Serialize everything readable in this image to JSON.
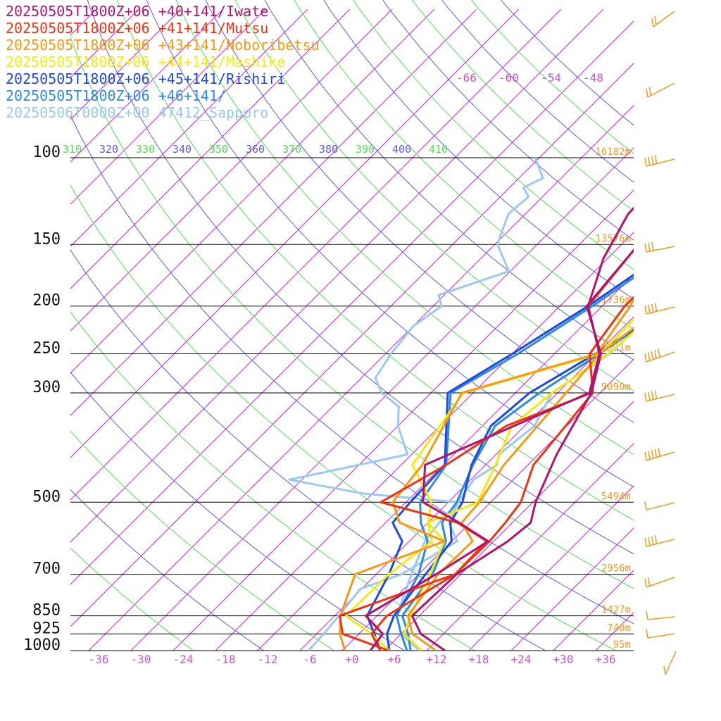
{
  "chart_data": {
    "type": "line",
    "title": "",
    "xlabel": "",
    "ylabel": "",
    "y_scale": "log-pressure",
    "x_ticks": [
      "-36",
      "-30",
      "-24",
      "-18",
      "-12",
      "-6",
      "+0",
      "+6",
      "+12",
      "+18",
      "+24",
      "+30",
      "+36"
    ],
    "pressure_ticks": [
      {
        "p": 100,
        "label": "100"
      },
      {
        "p": 150,
        "label": "150"
      },
      {
        "p": 200,
        "label": "200"
      },
      {
        "p": 250,
        "label": "250"
      },
      {
        "p": 300,
        "label": "300"
      },
      {
        "p": 500,
        "label": "500"
      },
      {
        "p": 700,
        "label": "700"
      },
      {
        "p": 850,
        "label": "850"
      },
      {
        "p": 925,
        "label": "925"
      },
      {
        "p": 1000,
        "label": "1000"
      }
    ],
    "heights": [
      {
        "p": 100,
        "label": "16182m"
      },
      {
        "p": 150,
        "label": "13576m"
      },
      {
        "p": 200,
        "label": "11736m"
      },
      {
        "p": 250,
        "label": "10321m"
      },
      {
        "p": 300,
        "label": "9090m"
      },
      {
        "p": 500,
        "label": "5494m"
      },
      {
        "p": 700,
        "label": "2956m"
      },
      {
        "p": 850,
        "label": "1427m"
      },
      {
        "p": 925,
        "label": "740m"
      },
      {
        "p": 1000,
        "label": "95m"
      }
    ],
    "theta_labels": [
      "310",
      "320",
      "330",
      "340",
      "350",
      "360",
      "370",
      "380",
      "390",
      "400",
      "410"
    ],
    "isotherm_top_labels": [
      "-66",
      "-60",
      "-54",
      "-48"
    ],
    "series": [
      {
        "name": "20250505T1800Z+06 +40+141/Iwate",
        "color": "#b5126e"
      },
      {
        "name": "20250505T1800Z+06 +41+141/Mutsu",
        "color": "#ef3412"
      },
      {
        "name": "20250505T1800Z+06 +43+141/Noboribetsu",
        "color": "#f79a0f"
      },
      {
        "name": "20250505T1800Z+06 +44+141/Mashike",
        "color": "#f4ea12"
      },
      {
        "name": "20250505T1800Z+06 +45+141/Rishiri",
        "color": "#1f48e3"
      },
      {
        "name": "20250505T1800Z+06 +46+141/",
        "color": "#2c8ae6"
      },
      {
        "name": "20250506T0000Z+00 47412_Sapporo",
        "color": "#9cc8f4"
      }
    ],
    "profiles": [
      {
        "series": 0,
        "temperature": [
          [
            1000,
            12.6
          ],
          [
            925,
            6.8
          ],
          [
            850,
            3.0
          ],
          [
            700,
            3.4
          ],
          [
            600,
            6.0
          ],
          [
            550,
            6.6
          ],
          [
            500,
            4.4
          ],
          [
            400,
            0.6
          ],
          [
            300,
            -3.2
          ],
          [
            250,
            -7.4
          ],
          [
            200,
            -16.2
          ],
          [
            150,
            -17.6
          ],
          [
            100,
            -20.6
          ],
          [
            80,
            -26.0
          ],
          [
            50,
            -34.0
          ]
        ],
        "dewpoint": [
          [
            1000,
            2.0
          ],
          [
            925,
            1.4
          ],
          [
            850,
            -3.6
          ],
          [
            700,
            0.5
          ],
          [
            600,
            3.2
          ],
          [
            550,
            -3.6
          ],
          [
            500,
            -11.6
          ],
          [
            420,
            -16.6
          ],
          [
            300,
            -3.5
          ],
          [
            250,
            -7.6
          ],
          [
            200,
            -16.0
          ],
          [
            160,
            -20.6
          ],
          [
            130,
            -23.4
          ],
          [
            100,
            -23.8
          ],
          [
            70,
            -28.0
          ],
          [
            50,
            -34.5
          ]
        ]
      },
      {
        "series": 1,
        "temperature": [
          [
            1000,
            4.6
          ],
          [
            925,
            -4.3
          ],
          [
            850,
            -7.3
          ],
          [
            700,
            3.2
          ],
          [
            600,
            3.4
          ],
          [
            550,
            3.0
          ],
          [
            500,
            2.3
          ],
          [
            420,
            -1.2
          ],
          [
            300,
            -3.0
          ],
          [
            250,
            -9.0
          ],
          [
            200,
            -10.8
          ],
          [
            150,
            -10.6
          ],
          [
            100,
            -16.6
          ],
          [
            80,
            -26.0
          ],
          [
            50,
            -33.4
          ]
        ],
        "dewpoint": [
          [
            1000,
            3.4
          ],
          [
            925,
            -0.2
          ],
          [
            850,
            -0.6
          ],
          [
            700,
            3.2
          ],
          [
            600,
            3.0
          ],
          [
            550,
            -3.8
          ],
          [
            500,
            -17.6
          ],
          [
            420,
            -13.6
          ],
          [
            350,
            -10.6
          ],
          [
            300,
            -3.2
          ],
          [
            250,
            -7.6
          ],
          [
            200,
            -16.0
          ],
          [
            150,
            -17.6
          ],
          [
            100,
            -19.2
          ],
          [
            70,
            -27.0
          ],
          [
            50,
            -33.5
          ]
        ]
      },
      {
        "series": 2,
        "temperature": [
          [
            1000,
            11.3
          ],
          [
            925,
            5.6
          ],
          [
            850,
            2.4
          ],
          [
            700,
            0.8
          ],
          [
            600,
            1.0
          ],
          [
            550,
            -3.2
          ],
          [
            500,
            -3.6
          ],
          [
            420,
            -5.4
          ],
          [
            300,
            -6.8
          ],
          [
            250,
            -7.6
          ],
          [
            200,
            -5.4
          ],
          [
            150,
            -10.6
          ],
          [
            100,
            -19.2
          ],
          [
            80,
            -23.0
          ],
          [
            50,
            -32.9
          ]
        ],
        "dewpoint": [
          [
            1000,
            -1.6
          ],
          [
            925,
            -4.7
          ],
          [
            850,
            -7.2
          ],
          [
            700,
            -11.0
          ],
          [
            600,
            -3.0
          ],
          [
            550,
            -12.0
          ],
          [
            500,
            -15.9
          ],
          [
            420,
            -17.0
          ],
          [
            300,
            -21.6
          ],
          [
            250,
            -8.0
          ],
          [
            200,
            -10.0
          ],
          [
            150,
            -14.6
          ],
          [
            100,
            -19.2
          ],
          [
            70,
            -25.0
          ],
          [
            50,
            -33.3
          ]
        ]
      },
      {
        "series": 3,
        "temperature": [
          [
            1000,
            9.3
          ],
          [
            925,
            4.4
          ],
          [
            850,
            2.8
          ],
          [
            700,
            -0.4
          ],
          [
            600,
            -3.0
          ],
          [
            550,
            -8.0
          ],
          [
            500,
            -3.8
          ],
          [
            420,
            -6.6
          ],
          [
            350,
            -9.8
          ],
          [
            300,
            -8.8
          ],
          [
            250,
            -6.4
          ],
          [
            200,
            -5.2
          ],
          [
            150,
            -8.6
          ],
          [
            100,
            -14.0
          ],
          [
            80,
            -25.6
          ],
          [
            50,
            -34.0
          ]
        ],
        "dewpoint": [
          [
            1000,
            4.7
          ],
          [
            925,
            -0.2
          ],
          [
            850,
            -6.4
          ],
          [
            700,
            -6.2
          ],
          [
            600,
            -4.8
          ],
          [
            550,
            -8.0
          ],
          [
            500,
            -10.4
          ],
          [
            420,
            -18.4
          ],
          [
            300,
            -21.4
          ],
          [
            250,
            -7.6
          ],
          [
            200,
            -7.6
          ],
          [
            150,
            -15.0
          ],
          [
            100,
            -20.2
          ],
          [
            70,
            -26.0
          ],
          [
            50,
            -33.6
          ]
        ]
      },
      {
        "series": 4,
        "temperature": [
          [
            1000,
            4.7
          ],
          [
            925,
            2.0
          ],
          [
            850,
            0.4
          ],
          [
            700,
            -1.0
          ],
          [
            600,
            -2.0
          ],
          [
            550,
            -4.8
          ],
          [
            500,
            -6.0
          ],
          [
            420,
            -10.0
          ],
          [
            350,
            -12.8
          ],
          [
            300,
            -12.0
          ],
          [
            250,
            -8.2
          ],
          [
            200,
            -4.2
          ],
          [
            150,
            -7.0
          ],
          [
            100,
            -13.0
          ],
          [
            80,
            -22.0
          ],
          [
            50,
            -32.0
          ]
        ],
        "dewpoint": [
          [
            1000,
            3.4
          ],
          [
            925,
            0.2
          ],
          [
            850,
            -3.4
          ],
          [
            700,
            -6.2
          ],
          [
            600,
            -9.0
          ],
          [
            550,
            -13.0
          ],
          [
            500,
            -13.4
          ],
          [
            420,
            -13.8
          ],
          [
            300,
            -23.6
          ],
          [
            250,
            -20.0
          ],
          [
            200,
            -16.0
          ],
          [
            150,
            -12.0
          ],
          [
            100,
            -10.0
          ],
          [
            70,
            -15.0
          ],
          [
            50,
            -26.0
          ]
        ]
      },
      {
        "series": 5,
        "temperature": [
          [
            1000,
            7.7
          ],
          [
            925,
            5.0
          ],
          [
            850,
            1.6
          ],
          [
            700,
            0.0
          ],
          [
            600,
            -2.8
          ],
          [
            550,
            -6.0
          ],
          [
            500,
            -6.8
          ],
          [
            420,
            -9.8
          ],
          [
            350,
            -12.2
          ],
          [
            300,
            -10.6
          ],
          [
            250,
            -7.6
          ],
          [
            200,
            -4.4
          ],
          [
            150,
            -6.0
          ],
          [
            100,
            -12.0
          ],
          [
            80,
            -22.0
          ],
          [
            50,
            -33.0
          ]
        ],
        "dewpoint": [
          [
            1000,
            7.2
          ],
          [
            925,
            4.0
          ],
          [
            850,
            0.8
          ],
          [
            700,
            -2.0
          ],
          [
            600,
            -5.4
          ],
          [
            550,
            -9.0
          ],
          [
            500,
            -12.0
          ],
          [
            420,
            -13.6
          ],
          [
            300,
            -23.2
          ],
          [
            250,
            -19.2
          ],
          [
            200,
            -15.4
          ],
          [
            150,
            -11.4
          ],
          [
            100,
            -9.6
          ],
          [
            70,
            -13.6
          ],
          [
            50,
            -24.0
          ]
        ]
      },
      {
        "series": 6,
        "temperature": [
          [
            1000,
            9.0
          ],
          [
            925,
            4.0
          ],
          [
            850,
            0.8
          ],
          [
            700,
            -3.0
          ],
          [
            600,
            -5.8
          ],
          [
            550,
            -6.4
          ],
          [
            500,
            -6.6
          ],
          [
            450,
            -7.6
          ],
          [
            420,
            -6.4
          ],
          [
            400,
            -7.6
          ],
          [
            350,
            -6.6
          ],
          [
            300,
            -8.8
          ],
          [
            250,
            -6.2
          ],
          [
            200,
            -5.6
          ],
          [
            170,
            -2.6
          ],
          [
            150,
            -3.0
          ],
          [
            130,
            -7.2
          ],
          [
            100,
            -10.6
          ]
        ],
        "dewpoint": [
          [
            1000,
            -6.8
          ],
          [
            925,
            -7.0
          ],
          [
            850,
            -7.4
          ],
          [
            750,
            -8.2
          ],
          [
            700,
            -4.4
          ],
          [
            600,
            -1.2
          ],
          [
            550,
            -5.0
          ],
          [
            500,
            -6.6
          ],
          [
            480,
            -21.4
          ],
          [
            450,
            -33.8
          ],
          [
            430,
            -28.6
          ],
          [
            400,
            -20.6
          ],
          [
            350,
            -26.0
          ],
          [
            320,
            -28.6
          ],
          [
            300,
            -33.0
          ],
          [
            280,
            -36.0
          ],
          [
            250,
            -37.2
          ],
          [
            220,
            -38.0
          ],
          [
            200,
            -36.8
          ],
          [
            190,
            -38.8
          ],
          [
            170,
            -32.2
          ],
          [
            150,
            -37.6
          ],
          [
            140,
            -39.0
          ],
          [
            130,
            -40.4
          ],
          [
            120,
            -40.0
          ],
          [
            115,
            -42.0
          ],
          [
            110,
            -40.6
          ],
          [
            100,
            -44.6
          ]
        ]
      }
    ],
    "grid": true,
    "legend_position": "top-left"
  }
}
